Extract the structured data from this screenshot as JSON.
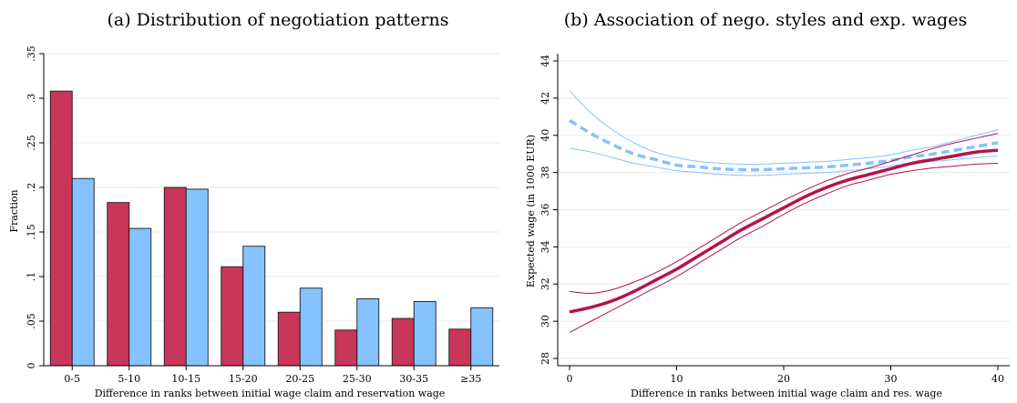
{
  "chart_data": [
    {
      "type": "bar",
      "title": "(a) Distribution of negotiation patterns",
      "xlabel": "Difference in ranks between initial wage claim and reservation wage",
      "ylabel": "Fraction",
      "ylim": [
        0,
        0.35
      ],
      "yticks": [
        0,
        0.05,
        0.1,
        0.15,
        0.2,
        0.25,
        0.3,
        0.35
      ],
      "ytick_labels": [
        "0",
        ".05",
        ".1",
        ".15",
        ".2",
        ".25",
        ".3",
        ".35"
      ],
      "grid": true,
      "categories": [
        "0-5",
        "5-10",
        "10-15",
        "15-20",
        "20-25",
        "25-30",
        "30-35",
        "≥35"
      ],
      "series": [
        {
          "color": "#c8365a",
          "values": [
            0.308,
            0.183,
            0.2,
            0.111,
            0.06,
            0.04,
            0.053,
            0.041
          ]
        },
        {
          "color": "#86c2ff",
          "values": [
            0.21,
            0.154,
            0.198,
            0.134,
            0.087,
            0.075,
            0.072,
            0.065
          ]
        }
      ]
    },
    {
      "type": "line",
      "title": "(b) Association of nego. styles and exp. wages",
      "xlabel": "Difference in ranks between initial wage claim and res. wage",
      "ylabel": "Expected wage (in 1000 EUR)",
      "xlim": [
        0,
        40
      ],
      "ylim": [
        28,
        44
      ],
      "xticks": [
        0,
        10,
        20,
        30,
        40
      ],
      "yticks": [
        28,
        30,
        32,
        34,
        36,
        38,
        40,
        42,
        44
      ],
      "grid": true,
      "x": [
        0,
        2,
        4,
        6,
        8,
        10,
        12,
        14,
        16,
        18,
        20,
        22,
        24,
        26,
        28,
        30,
        32,
        34,
        36,
        38,
        40
      ],
      "series": [
        {
          "color": "#86c2ff",
          "style": "dashed",
          "values": [
            40.8,
            40.1,
            39.5,
            39.0,
            38.7,
            38.4,
            38.3,
            38.2,
            38.15,
            38.15,
            38.2,
            38.25,
            38.3,
            38.4,
            38.5,
            38.65,
            38.85,
            39.0,
            39.2,
            39.4,
            39.6
          ],
          "lower": [
            39.3,
            39.1,
            38.8,
            38.5,
            38.3,
            38.1,
            38.0,
            37.9,
            37.85,
            37.85,
            37.9,
            37.95,
            38.0,
            38.1,
            38.2,
            38.35,
            38.5,
            38.6,
            38.7,
            38.8,
            38.9
          ],
          "upper": [
            42.4,
            41.2,
            40.3,
            39.6,
            39.1,
            38.8,
            38.6,
            38.5,
            38.45,
            38.45,
            38.5,
            38.55,
            38.6,
            38.7,
            38.8,
            38.95,
            39.2,
            39.4,
            39.7,
            40.0,
            40.3
          ]
        },
        {
          "color": "#b5134a",
          "style": "solid",
          "values": [
            30.5,
            30.75,
            31.1,
            31.6,
            32.2,
            32.8,
            33.5,
            34.2,
            34.9,
            35.5,
            36.1,
            36.7,
            37.2,
            37.6,
            37.9,
            38.2,
            38.5,
            38.7,
            38.9,
            39.1,
            39.2
          ],
          "lower": [
            29.4,
            30.0,
            30.6,
            31.2,
            31.8,
            32.4,
            33.1,
            33.8,
            34.5,
            35.1,
            35.75,
            36.35,
            36.85,
            37.3,
            37.6,
            37.9,
            38.1,
            38.25,
            38.35,
            38.45,
            38.5
          ],
          "upper": [
            31.6,
            31.5,
            31.7,
            32.1,
            32.6,
            33.2,
            33.9,
            34.6,
            35.3,
            35.9,
            36.5,
            37.05,
            37.55,
            37.95,
            38.25,
            38.6,
            38.95,
            39.3,
            39.6,
            39.85,
            40.1
          ]
        }
      ]
    }
  ]
}
